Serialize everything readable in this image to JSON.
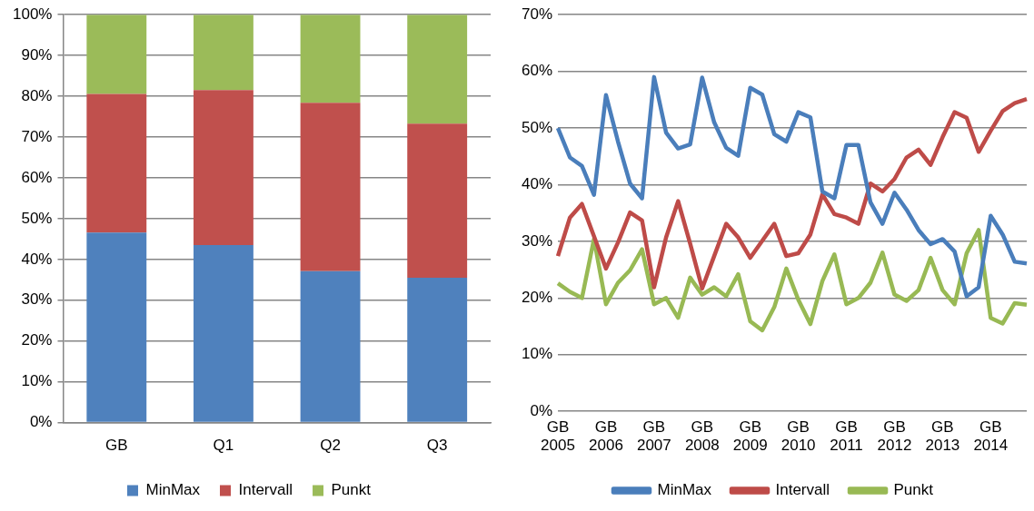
{
  "chart_data": [
    {
      "type": "bar",
      "stacked": true,
      "categories": [
        "GB",
        "Q1",
        "Q2",
        "Q3"
      ],
      "series": [
        {
          "name": "MinMax",
          "color": "#4f81bd",
          "values": [
            46.6,
            43.5,
            37.1,
            35.5
          ]
        },
        {
          "name": "Intervall",
          "color": "#c0504d",
          "values": [
            34.0,
            38.0,
            41.3,
            37.8
          ]
        },
        {
          "name": "Punkt",
          "color": "#9bbb59",
          "values": [
            19.4,
            18.5,
            21.6,
            26.7
          ]
        }
      ],
      "ylim": [
        0,
        100
      ],
      "yticks": [
        {
          "value": 0,
          "label": "0%"
        },
        {
          "value": 10,
          "label": "10%"
        },
        {
          "value": 20,
          "label": "20%"
        },
        {
          "value": 30,
          "label": "30%"
        },
        {
          "value": 40,
          "label": "40%"
        },
        {
          "value": 50,
          "label": "50%"
        },
        {
          "value": 60,
          "label": "60%"
        },
        {
          "value": 70,
          "label": "70%"
        },
        {
          "value": 80,
          "label": "80%"
        },
        {
          "value": 90,
          "label": "90%"
        },
        {
          "value": 100,
          "label": "100%"
        }
      ],
      "grid": "y",
      "legend": "bottom"
    },
    {
      "type": "line",
      "categories": [
        "GB 2005",
        null,
        null,
        null,
        "GB 2006",
        null,
        null,
        null,
        "GB 2007",
        null,
        null,
        null,
        "GB 2008",
        null,
        null,
        null,
        "GB 2009",
        null,
        null,
        null,
        "GB 2010",
        null,
        null,
        null,
        "GB 2011",
        null,
        null,
        null,
        "GB 2012",
        null,
        null,
        null,
        "GB 2013",
        null,
        null,
        null,
        "GB 2014",
        null,
        null,
        null
      ],
      "series": [
        {
          "name": "MinMax",
          "color": "#4a7ebb",
          "values": [
            50.0,
            44.8,
            43.3,
            38.2,
            55.8,
            47.6,
            40.2,
            37.6,
            59.0,
            49.2,
            46.4,
            47.1,
            58.9,
            51.0,
            46.5,
            45.1,
            57.1,
            55.9,
            48.9,
            47.6,
            52.8,
            51.9,
            38.8,
            37.6,
            47.0,
            47.0,
            36.9,
            33.1,
            38.6,
            35.6,
            32.0,
            29.5,
            30.4,
            28.2,
            20.3,
            21.9,
            34.5,
            31.2,
            26.4,
            26.1
          ]
        },
        {
          "name": "Intervall",
          "color": "#be4b48",
          "values": [
            27.4,
            34.2,
            36.6,
            30.9,
            25.2,
            29.8,
            35.1,
            33.7,
            21.9,
            30.7,
            37.1,
            29.6,
            21.7,
            27.4,
            33.1,
            30.7,
            27.1,
            30.1,
            33.1,
            27.4,
            27.9,
            31.2,
            38.3,
            34.8,
            34.2,
            33.1,
            40.2,
            38.8,
            41.0,
            44.8,
            46.2,
            43.5,
            48.4,
            52.8,
            51.8,
            45.8,
            49.5,
            53.0,
            54.4,
            55.1
          ]
        },
        {
          "name": "Punkt",
          "color": "#98b954",
          "values": [
            22.6,
            21.1,
            20.0,
            30.4,
            18.9,
            22.7,
            24.9,
            28.6,
            18.9,
            20.0,
            16.5,
            23.6,
            20.6,
            21.9,
            20.3,
            24.2,
            15.9,
            14.3,
            18.4,
            25.2,
            19.7,
            15.4,
            23.0,
            27.7,
            18.9,
            20.0,
            22.7,
            28.0,
            20.6,
            19.5,
            21.4,
            27.1,
            21.4,
            18.9,
            27.9,
            32.0,
            16.5,
            15.5,
            19.1,
            18.8
          ]
        }
      ],
      "ylim": [
        0,
        70
      ],
      "yticks": [
        {
          "value": 0,
          "label": "0%"
        },
        {
          "value": 10,
          "label": "10%"
        },
        {
          "value": 20,
          "label": "20%"
        },
        {
          "value": 30,
          "label": "30%"
        },
        {
          "value": 40,
          "label": "40%"
        },
        {
          "value": 50,
          "label": "50%"
        },
        {
          "value": 60,
          "label": "60%"
        },
        {
          "value": 70,
          "label": "70%"
        }
      ],
      "grid": "y",
      "legend": "bottom",
      "marker": "none",
      "line_style": "solid"
    }
  ]
}
